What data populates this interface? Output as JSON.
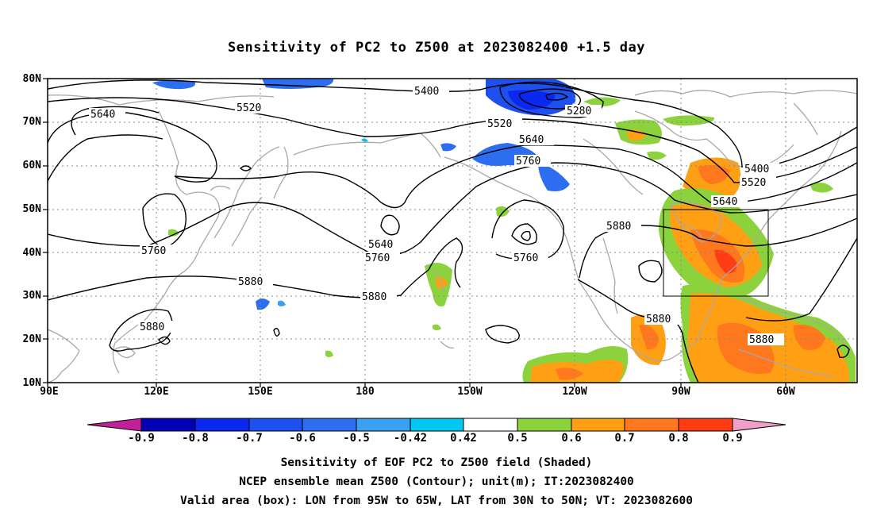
{
  "title": "Sensitivity of PC2 to Z500 at 2023082400 +1.5 day",
  "lat_labels": [
    "80N",
    "70N",
    "60N",
    "50N",
    "40N",
    "30N",
    "20N",
    "10N"
  ],
  "lon_labels": [
    "90E",
    "120E",
    "150E",
    "180",
    "150W",
    "120W",
    "90W",
    "60W"
  ],
  "contour_labels": {
    "c5400a": "5400",
    "c5520a": "5520",
    "c5640a": "5640",
    "c5280": "5280",
    "c5520b": "5520",
    "c5640b": "5640",
    "c5760a": "5760",
    "c5400b": "5400",
    "c5520c": "5520",
    "c5640c": "5640",
    "c5880a": "5880",
    "c5760b": "5760",
    "c5640d": "5640",
    "c5760c": "5760",
    "c5760d": "5760",
    "c5880b": "5880",
    "c5880c": "5880",
    "c5880d": "5880",
    "c5880e": "5880",
    "c5880f": "5880"
  },
  "colorbar": {
    "labels": [
      "-0.9",
      "-0.8",
      "-0.7",
      "-0.6",
      "-0.5",
      "-0.42",
      "0.42",
      "0.5",
      "0.6",
      "0.7",
      "0.8",
      "0.9"
    ],
    "colors": {
      "under": "#c0209a",
      "bins": [
        "#0000b4",
        "#0a28f0",
        "#1e50f0",
        "#2d6ef0",
        "#3ca0f0",
        "#00c8f0",
        "#ffffff",
        "#8cd23c",
        "#ffa014",
        "#ff781e",
        "#ff3c14",
        "#f00000"
      ],
      "over": "#f0a0c8"
    }
  },
  "caption": {
    "line1": "Sensitivity of EOF PC2 to Z500 field (Shaded)",
    "line2": "NCEP ensemble mean Z500 (Contour); unit(m); IT:2023082400",
    "line3": "Valid area (box): LON from 95W to 65W, LAT from 30N to 50N; VT: 2023082600"
  }
}
